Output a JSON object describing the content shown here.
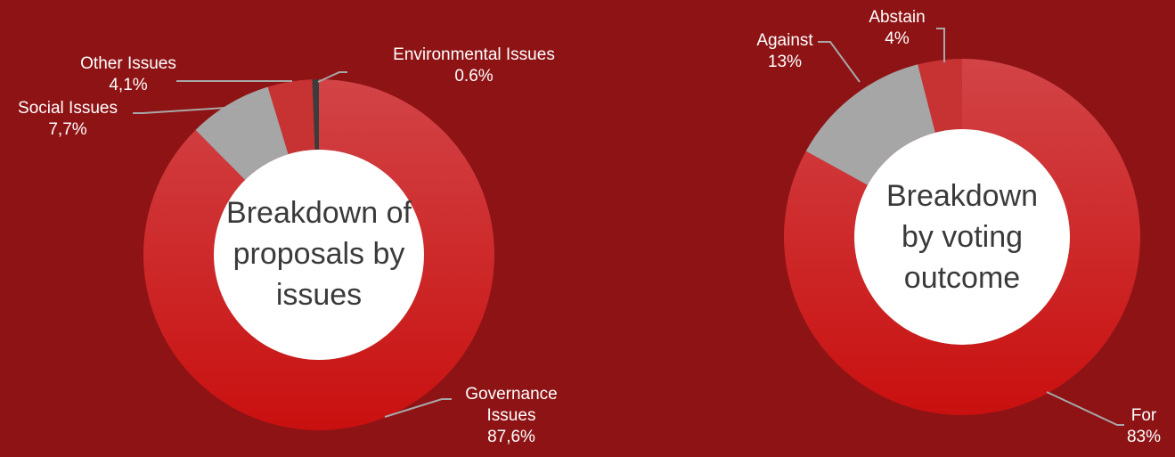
{
  "chart_data": [
    {
      "type": "pie",
      "style": "donut",
      "title": "Breakdown of proposals by issues",
      "center_lines": [
        "Breakdown of",
        "proposals by",
        "issues"
      ],
      "slices": [
        {
          "name": "Governance Issues",
          "value": 87.6,
          "label_lines": [
            "Governance",
            "Issues",
            "87,6%"
          ],
          "color": "#c9100f",
          "color_light": "#d24447"
        },
        {
          "name": "Social Issues",
          "value": 7.7,
          "label_lines": [
            "Social Issues",
            "7,7%"
          ],
          "color": "#a6a6a6",
          "color_light": "#a6a6a6"
        },
        {
          "name": "Other Issues",
          "value": 4.1,
          "label_lines": [
            "Other Issues",
            "4,1%"
          ],
          "color": "#c73233",
          "color_light": "#c73233"
        },
        {
          "name": "Environmental Issues",
          "value": 0.6,
          "label_lines": [
            "Environmental Issues",
            "0.6%"
          ],
          "color": "#3c3c3c",
          "color_light": "#3c3c3c"
        }
      ]
    },
    {
      "type": "pie",
      "style": "donut",
      "title": "Breakdown by voting outcome",
      "center_lines": [
        "Breakdown",
        "by voting",
        "outcome"
      ],
      "slices": [
        {
          "name": "For",
          "value": 83,
          "label_lines": [
            "For",
            "83%"
          ],
          "color": "#c9100f",
          "color_light": "#d24447"
        },
        {
          "name": "Against",
          "value": 13,
          "label_lines": [
            "Against",
            "13%"
          ],
          "color": "#a6a6a6",
          "color_light": "#a6a6a6"
        },
        {
          "name": "Abstain",
          "value": 4,
          "label_lines": [
            "Abstain",
            "4%"
          ],
          "color": "#c73233",
          "color_light": "#c73233"
        }
      ]
    }
  ]
}
